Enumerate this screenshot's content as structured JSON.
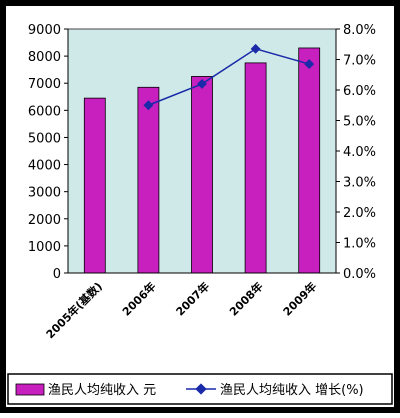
{
  "chart_data": {
    "type": "bar",
    "categories": [
      "2005年(基数)",
      "2006年",
      "2007年",
      "2008年",
      "2009年"
    ],
    "series": [
      {
        "name": "渔民人均纯收入 元",
        "type": "bar",
        "axis": "left",
        "values": [
          6450,
          6850,
          7250,
          7750,
          8300
        ],
        "color": "#c81fbf"
      },
      {
        "name": "渔民人均纯收入 增长(%)",
        "type": "line",
        "axis": "right",
        "values": [
          null,
          5.5,
          6.2,
          7.35,
          6.85
        ],
        "color": "#1a2aa8"
      }
    ],
    "y_left": {
      "range": [
        0,
        9000
      ],
      "ticks": [
        "0",
        "1000",
        "2000",
        "3000",
        "4000",
        "5000",
        "6000",
        "7000",
        "8000",
        "9000"
      ]
    },
    "y_right": {
      "range": [
        0,
        8
      ],
      "ticks": [
        "0.0%",
        "1.0%",
        "2.0%",
        "3.0%",
        "4.0%",
        "5.0%",
        "6.0%",
        "7.0%",
        "8.0%"
      ]
    },
    "plot_background": "#cfe9e9",
    "frame_color": "#000000",
    "legend_position": "bottom",
    "grid": false
  }
}
